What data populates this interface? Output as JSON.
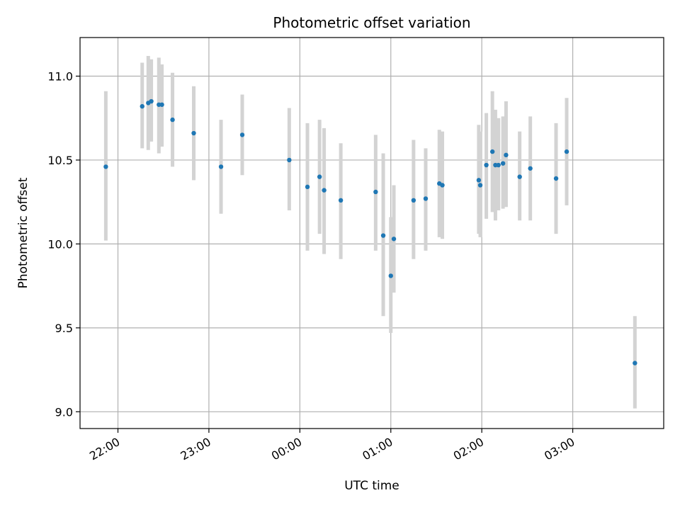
{
  "chart_data": {
    "type": "scatter",
    "title": "Photometric offset variation",
    "xlabel": "UTC time",
    "ylabel": "Photometric offset",
    "x_unit": "UTC time of night (hours, 24h clock, crossing midnight)",
    "xlim": [
      "21:35",
      "04:00"
    ],
    "ylim": [
      8.9,
      11.23
    ],
    "x_ticks": [
      "22:00",
      "23:00",
      "00:00",
      "01:00",
      "02:00",
      "03:00"
    ],
    "y_ticks": [
      "9.0",
      "9.5",
      "10.0",
      "10.5",
      "11.0"
    ],
    "grid": true,
    "legend": "none",
    "colors": {
      "point": "#1f77b4",
      "errorbar": "#d3d3d3",
      "grid": "#b0b0b0"
    },
    "series": [
      {
        "points": [
          {
            "x": "21:52",
            "y": 10.46,
            "lo": 10.02,
            "hi": 10.91
          },
          {
            "x": "22:16",
            "y": 10.82,
            "lo": 10.57,
            "hi": 11.08
          },
          {
            "x": "22:20",
            "y": 10.84,
            "lo": 10.56,
            "hi": 11.12
          },
          {
            "x": "22:22",
            "y": 10.85,
            "lo": 10.61,
            "hi": 11.1
          },
          {
            "x": "22:27",
            "y": 10.83,
            "lo": 10.54,
            "hi": 11.11
          },
          {
            "x": "22:29",
            "y": 10.83,
            "lo": 10.58,
            "hi": 11.07
          },
          {
            "x": "22:36",
            "y": 10.74,
            "lo": 10.46,
            "hi": 11.02
          },
          {
            "x": "22:50",
            "y": 10.66,
            "lo": 10.38,
            "hi": 10.94
          },
          {
            "x": "23:08",
            "y": 10.46,
            "lo": 10.18,
            "hi": 10.74
          },
          {
            "x": "23:22",
            "y": 10.65,
            "lo": 10.41,
            "hi": 10.89
          },
          {
            "x": "23:53",
            "y": 10.5,
            "lo": 10.2,
            "hi": 10.81
          },
          {
            "x": "00:05",
            "y": 10.34,
            "lo": 9.96,
            "hi": 10.72
          },
          {
            "x": "00:13",
            "y": 10.4,
            "lo": 10.06,
            "hi": 10.74
          },
          {
            "x": "00:16",
            "y": 10.32,
            "lo": 9.94,
            "hi": 10.69
          },
          {
            "x": "00:27",
            "y": 10.26,
            "lo": 9.91,
            "hi": 10.6
          },
          {
            "x": "00:50",
            "y": 10.31,
            "lo": 9.96,
            "hi": 10.65
          },
          {
            "x": "00:55",
            "y": 10.05,
            "lo": 9.57,
            "hi": 10.54
          },
          {
            "x": "01:00",
            "y": 9.81,
            "lo": 9.47,
            "hi": 10.16
          },
          {
            "x": "01:02",
            "y": 10.03,
            "lo": 9.71,
            "hi": 10.35
          },
          {
            "x": "01:15",
            "y": 10.26,
            "lo": 9.91,
            "hi": 10.62
          },
          {
            "x": "01:23",
            "y": 10.27,
            "lo": 9.96,
            "hi": 10.57
          },
          {
            "x": "01:32",
            "y": 10.36,
            "lo": 10.04,
            "hi": 10.68
          },
          {
            "x": "01:34",
            "y": 10.35,
            "lo": 10.03,
            "hi": 10.67
          },
          {
            "x": "01:58",
            "y": 10.38,
            "lo": 10.06,
            "hi": 10.71
          },
          {
            "x": "01:59",
            "y": 10.35,
            "lo": 10.04,
            "hi": 10.67
          },
          {
            "x": "02:03",
            "y": 10.47,
            "lo": 10.15,
            "hi": 10.78
          },
          {
            "x": "02:07",
            "y": 10.55,
            "lo": 10.19,
            "hi": 10.91
          },
          {
            "x": "02:09",
            "y": 10.47,
            "lo": 10.14,
            "hi": 10.8
          },
          {
            "x": "02:11",
            "y": 10.47,
            "lo": 10.2,
            "hi": 10.75
          },
          {
            "x": "02:14",
            "y": 10.48,
            "lo": 10.21,
            "hi": 10.76
          },
          {
            "x": "02:16",
            "y": 10.53,
            "lo": 10.22,
            "hi": 10.85
          },
          {
            "x": "02:25",
            "y": 10.4,
            "lo": 10.14,
            "hi": 10.67
          },
          {
            "x": "02:32",
            "y": 10.45,
            "lo": 10.14,
            "hi": 10.76
          },
          {
            "x": "02:49",
            "y": 10.39,
            "lo": 10.06,
            "hi": 10.72
          },
          {
            "x": "02:56",
            "y": 10.55,
            "lo": 10.23,
            "hi": 10.87
          },
          {
            "x": "03:41",
            "y": 9.29,
            "lo": 9.02,
            "hi": 9.57
          }
        ]
      }
    ]
  }
}
